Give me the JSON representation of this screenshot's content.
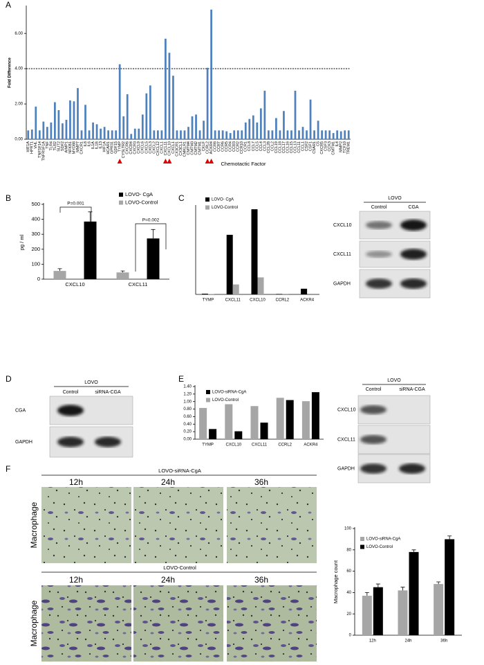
{
  "panel_labels": [
    "A",
    "B",
    "C",
    "D",
    "E",
    "F"
  ],
  "chart_data": [
    {
      "type": "bar",
      "y_label": "Fold Difference",
      "x_label": "Chemotactic Factor",
      "color": "#4f81bd",
      "categories": [
        "HIF1A",
        "HPRT1",
        "VHL",
        "TNFSF14",
        "TNFRSF1A",
        "TNF",
        "TLR4",
        "TLR2",
        "SLIT2",
        "SDF2",
        "AIMP1",
        "NFKB1",
        "MYD88",
        "MMP7",
        "CXCR1",
        "IL8",
        "IL6",
        "IL1A",
        "IL1B",
        "IL13",
        "HIF1A",
        "HCAR1",
        "GPR31",
        "GDF15",
        "TYMP",
        "CYSLTR2",
        "CXCR6",
        "CXCR4",
        "CXCR3",
        "CXCL9",
        "CXCL6",
        "CXCL5",
        "CXCL3",
        "CXCL2",
        "CXCL12",
        "CXCL1",
        "CXCL11",
        "CXCL10",
        "CXCL1",
        "CX3CR1",
        "CX3CL1",
        "CMKLR1",
        "CMTM4",
        "CMTM3",
        "CMTM2",
        "CMTM1",
        "CKLF",
        "CCRL2",
        "ACKR4",
        "CCR8",
        "CCR7",
        "CCR6",
        "CCR5",
        "CCR4",
        "CCR3",
        "CCR2",
        "CCR10",
        "CCR1",
        "CCL8",
        "CCL7",
        "CCL5",
        "CCL4",
        "CCL3",
        "CCL28",
        "CCL2",
        "CCL19",
        "CCL18",
        "CCL17",
        "CCL16",
        "CCL15",
        "CCL13",
        "CCL11",
        "CCL1",
        "CSF2",
        "CSF1",
        "C5AR1",
        "C5",
        "CXCR5",
        "CSF3",
        "CCK3",
        "CMTM1",
        "IL4",
        "MMP2",
        "TCF10",
        "TREM1"
      ],
      "values": [
        0.5,
        0.55,
        1.85,
        0.5,
        1.0,
        0.7,
        0.95,
        2.1,
        1.65,
        0.9,
        1.1,
        2.2,
        2.15,
        2.9,
        0.5,
        1.95,
        0.5,
        0.95,
        0.85,
        0.6,
        0.7,
        0.5,
        0.5,
        0.5,
        4.25,
        1.3,
        2.55,
        0.3,
        0.6,
        0.6,
        1.4,
        2.6,
        3.05,
        0.5,
        0.5,
        0.5,
        5.7,
        4.9,
        3.6,
        0.5,
        0.5,
        0.5,
        0.7,
        1.3,
        1.4,
        0.5,
        1.05,
        4.05,
        7.35,
        0.5,
        0.5,
        0.5,
        0.45,
        0.35,
        0.5,
        0.5,
        0.5,
        0.95,
        1.15,
        1.35,
        0.95,
        1.75,
        2.75,
        0.5,
        0.5,
        1.2,
        0.5,
        1.6,
        0.5,
        0.5,
        2.75,
        0.5,
        0.7,
        0.5,
        2.25,
        0.5,
        1.05,
        0.5,
        0.5,
        0.5,
        0.35,
        0.5,
        0.45,
        0.5,
        0.5
      ],
      "ylim": [
        0,
        7.5
      ],
      "yticks": [
        {
          "value": 0,
          "label": "0.00"
        },
        {
          "value": 2,
          "label": "2.00"
        },
        {
          "value": 4,
          "label": "4.00"
        },
        {
          "value": 6,
          "label": "6.00"
        }
      ],
      "reference_line": 4
    },
    {
      "type": "bar",
      "y_label": "pg / ml",
      "categories": [
        "CXCL10",
        "CXCL11"
      ],
      "series": [
        {
          "name": "LOVO- CgA",
          "color": "#000000",
          "values": [
            385,
            272
          ],
          "errors": [
            65,
            60
          ]
        },
        {
          "name": "LOVO-Control",
          "color": "#a6a6a6",
          "values": [
            55,
            45
          ],
          "errors": [
            15,
            10
          ]
        }
      ],
      "ylim": [
        0,
        500
      ],
      "yticks": [
        0,
        100,
        200,
        300,
        400,
        500
      ],
      "annotations": [
        "P=0.001",
        "P=0.002"
      ]
    },
    {
      "type": "bar",
      "categories": [
        "TYMP",
        "CXCL11",
        "CXCL10",
        "CCRL2",
        "ACKR4"
      ],
      "series": [
        {
          "name": "LOVO- CgA",
          "color": "#000000",
          "values": [
            5,
            420,
            600,
            3,
            40
          ]
        },
        {
          "name": "LOVO-Control",
          "color": "#a6a6a6",
          "values": [
            2,
            70,
            120,
            1,
            0
          ]
        }
      ],
      "ylim": [
        0,
        620
      ]
    },
    {
      "type": "bar",
      "categories": [
        "TYMP",
        "CXCL10",
        "CXCL11",
        "CCRL2",
        "ACKR4"
      ],
      "series": [
        {
          "name": "LOVO-siRNA-CgA",
          "color": "#000000",
          "values": [
            0.27,
            0.21,
            0.44,
            1.04,
            1.25
          ]
        },
        {
          "name": "LOVO-Control",
          "color": "#a6a6a6",
          "values": [
            0.83,
            0.93,
            0.88,
            1.1,
            1.01
          ]
        }
      ],
      "ylim": [
        0,
        1.4
      ],
      "yticks": [
        {
          "value": 0,
          "label": "0.00"
        },
        {
          "value": 0.2,
          "label": "0.20"
        },
        {
          "value": 0.4,
          "label": "0.40"
        },
        {
          "value": 0.6,
          "label": "0.60"
        },
        {
          "value": 0.8,
          "label": "0.80"
        },
        {
          "value": 1.0,
          "label": "1.00"
        },
        {
          "value": 1.2,
          "label": "1.20"
        },
        {
          "value": 1.4,
          "label": "1.40"
        }
      ]
    },
    {
      "type": "bar",
      "y_label": "Macrophage count",
      "categories": [
        "12h",
        "24h",
        "36h"
      ],
      "series": [
        {
          "name": "LOVO-siRNA-CgA",
          "color": "#a6a6a6",
          "values": [
            37,
            42,
            48
          ],
          "errors": [
            3,
            3,
            2
          ]
        },
        {
          "name": "LOVO-Control",
          "color": "#000000",
          "values": [
            45,
            78,
            90
          ],
          "errors": [
            3,
            2,
            3
          ]
        }
      ],
      "ylim": [
        0,
        100
      ],
      "yticks": [
        0,
        20,
        40,
        60,
        80,
        100
      ]
    }
  ],
  "blots": [
    {
      "group": "LOVO",
      "lanes": [
        "Control",
        "CGA"
      ],
      "rows": [
        "CXCL10",
        "CXCL11",
        "GAPDH"
      ]
    },
    {
      "group": "LOVO",
      "lanes": [
        "Control",
        "siRNA-CGA"
      ],
      "rows": [
        "CGA",
        "GAPDH"
      ]
    },
    {
      "group": "LOVO",
      "lanes": [
        "Control",
        "siRNA-CGA"
      ],
      "rows": [
        "CXCL10",
        "CXCL11",
        "GAPDH"
      ]
    }
  ],
  "micrographs": [
    {
      "group": "LOVO-siRNA-CgA",
      "times": [
        "12h",
        "24h",
        "36h"
      ],
      "row_label": "Macrophage"
    },
    {
      "group": "LOVO-Control",
      "times": [
        "12h",
        "24h",
        "36h"
      ],
      "row_label": "Macrophage"
    }
  ]
}
